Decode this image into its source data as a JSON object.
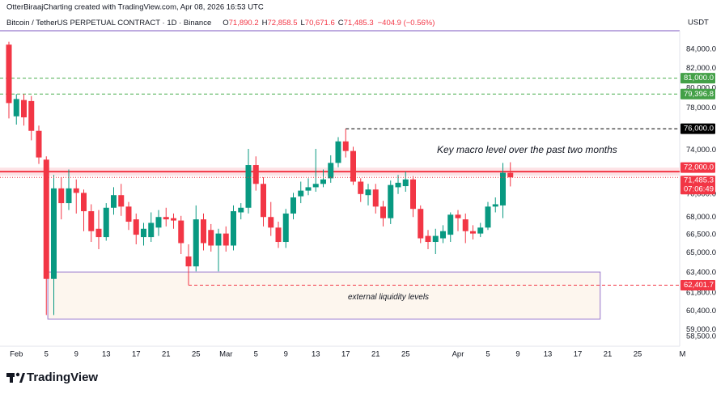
{
  "chart_data": {
    "type": "candlestick",
    "attribution": "OtterBiraajCharting created with TradingView.com, Apr 08, 2026 16:53 UTC",
    "title": "Bitcoin / TetherUS PERPETUAL CONTRACT · 1D · Binance",
    "readout": [
      {
        "key": "O",
        "text": "71,890.2"
      },
      {
        "key": "H",
        "text": "72,858.5"
      },
      {
        "key": "L",
        "text": "70,671.6"
      },
      {
        "key": "C",
        "text": "71,485.3"
      }
    ],
    "change": "−404.9 (−0.56%)",
    "currency": "USDT",
    "log_scale": true,
    "up_color": "#089981",
    "down_color": "#f23645",
    "categories": [
      null,
      "Feb",
      null,
      null,
      null,
      "5",
      null,
      null,
      null,
      "9",
      null,
      null,
      null,
      "13",
      null,
      null,
      null,
      "17",
      null,
      null,
      null,
      "21",
      null,
      null,
      null,
      "25",
      null,
      null,
      null,
      "Mar",
      null,
      null,
      null,
      "5",
      null,
      null,
      null,
      "9",
      null,
      null,
      null,
      "13",
      null,
      null,
      null,
      "17",
      null,
      null,
      null,
      "21",
      null,
      null,
      null,
      "25",
      null,
      null,
      null,
      null,
      null,
      null,
      "Apr",
      null,
      null,
      null,
      "5",
      null,
      null,
      null,
      "9",
      null,
      null,
      null,
      "13",
      null,
      null,
      null,
      "17",
      null,
      null,
      null,
      "21",
      null,
      null,
      null,
      "25",
      null,
      null,
      null,
      null,
      null,
      "M"
    ],
    "open": [
      84500,
      77200,
      78800,
      78700,
      75800,
      73100,
      62900,
      70500,
      69200,
      70500,
      70100,
      68500,
      67000,
      66300,
      68800,
      69900,
      68900,
      67800,
      66300,
      66300,
      67100,
      68000,
      67900,
      67700,
      64700,
      63900,
      67800,
      66900,
      65600,
      66600,
      65600,
      68400,
      68800,
      72600,
      70900,
      68000,
      67100,
      65900,
      68300,
      69800,
      70300,
      70600,
      70900,
      71400,
      72800,
      74800,
      73900,
      71100,
      69900,
      70400,
      68900,
      67900,
      70600,
      70700,
      71300,
      68700,
      66400,
      65900,
      66200,
      66500,
      68200,
      67800,
      66800,
      66600,
      67100,
      68900,
      69000,
      71890.2,
      null,
      null,
      null,
      null,
      null,
      null,
      null,
      null,
      null,
      null,
      null,
      null,
      null,
      null,
      null,
      null,
      null,
      null,
      null,
      null,
      null,
      null,
      null
    ],
    "high": [
      84800,
      79400,
      79400,
      79200,
      76300,
      73400,
      71700,
      71500,
      72200,
      71300,
      70400,
      69100,
      68600,
      69200,
      70600,
      70900,
      69300,
      68300,
      67500,
      68400,
      68600,
      68800,
      68300,
      68100,
      65700,
      69000,
      68300,
      67400,
      67000,
      67200,
      69000,
      69200,
      74100,
      73400,
      71500,
      69300,
      67600,
      68700,
      70100,
      71100,
      71400,
      74100,
      72200,
      73500,
      75200,
      76000,
      74300,
      71400,
      70900,
      70900,
      69400,
      71200,
      71700,
      72000,
      71600,
      69000,
      66900,
      67000,
      67300,
      68400,
      68600,
      68300,
      67300,
      67500,
      69300,
      69700,
      72800,
      72858.5,
      null,
      null,
      null,
      null,
      null,
      null,
      null,
      null,
      null,
      null,
      null,
      null,
      null,
      null,
      null,
      null,
      null,
      null,
      null,
      null,
      null,
      null,
      null
    ],
    "low": [
      77000,
      76400,
      76300,
      74900,
      72700,
      60100,
      60100,
      67800,
      68600,
      68300,
      66800,
      65900,
      65300,
      66000,
      68200,
      68100,
      66900,
      65700,
      65600,
      65900,
      66400,
      67200,
      67000,
      64900,
      62401.7,
      63500,
      65200,
      65100,
      63500,
      65100,
      65200,
      67800,
      68300,
      70300,
      67200,
      66400,
      65400,
      65400,
      67800,
      69200,
      69900,
      70200,
      70600,
      71000,
      72400,
      73300,
      70800,
      69300,
      69000,
      68300,
      67200,
      67400,
      70000,
      70200,
      68000,
      65800,
      65300,
      64900,
      65800,
      65900,
      66800,
      65800,
      66100,
      66300,
      66900,
      68400,
      67900,
      70671.6,
      null,
      null,
      null,
      null,
      null,
      null,
      null,
      null,
      null,
      null,
      null,
      null,
      null,
      null,
      null,
      null,
      null,
      null,
      null,
      null,
      null,
      null,
      null
    ],
    "close": [
      78500,
      78900,
      77100,
      75800,
      73300,
      62900,
      70500,
      69200,
      70500,
      70100,
      68500,
      66800,
      66300,
      68800,
      69900,
      68900,
      67600,
      66500,
      67000,
      67500,
      68000,
      67800,
      67700,
      65800,
      63900,
      67800,
      65800,
      65600,
      66600,
      65600,
      68500,
      68800,
      72600,
      70900,
      68000,
      67100,
      65900,
      68300,
      69700,
      70300,
      70600,
      70900,
      71300,
      72800,
      74800,
      73900,
      71100,
      70000,
      70400,
      68900,
      67900,
      70800,
      71000,
      71300,
      68700,
      66200,
      65900,
      66400,
      66800,
      68200,
      67900,
      66800,
      66600,
      67100,
      68900,
      69100,
      71900,
      71485.3,
      null,
      null,
      null,
      null,
      null,
      null,
      null,
      null,
      null,
      null,
      null,
      null,
      null,
      null,
      null,
      null,
      null,
      null,
      null,
      null,
      null,
      null,
      null
    ],
    "last_price": {
      "value": 71485.3,
      "label": "71,485.3"
    },
    "countdown": "07:06:49",
    "ylim": [
      57780,
      85990
    ],
    "yticks": [
      {
        "value": 58500,
        "label": "58,500.0"
      },
      {
        "value": 59000,
        "label": "59,000.0"
      },
      {
        "value": 60400,
        "label": "60,400.0"
      },
      {
        "value": 61800,
        "label": "61,800.0"
      },
      {
        "value": 63400,
        "label": "63,400.0"
      },
      {
        "value": 65000,
        "label": "65,000.0"
      },
      {
        "value": 66500,
        "label": "66,500.0"
      },
      {
        "value": 68000,
        "label": "68,000.0"
      },
      {
        "value": 70000,
        "label": "70,000.0"
      },
      {
        "value": 74000,
        "label": "74,000.0"
      },
      {
        "value": 78000,
        "label": "78,000.0"
      },
      {
        "value": 80000,
        "label": "80,000.0"
      },
      {
        "value": 82000,
        "label": "82,000.0"
      },
      {
        "value": 84000,
        "label": "84,000.0"
      }
    ],
    "levels": [
      {
        "value": 81000,
        "label": "81,000.0",
        "color": "#4caf50",
        "style": "dashed"
      },
      {
        "value": 79396.8,
        "label": "79,396.8",
        "color": "#4caf50",
        "style": "dashed"
      },
      {
        "value": 76000,
        "label": "76,000.0",
        "color": "#000000",
        "style": "dashed"
      },
      {
        "value": 72000,
        "label": "72,000.0",
        "color": "#f23645",
        "style": "solid"
      },
      {
        "value": 62401.7,
        "label": "62,401.7",
        "color": "#f23645",
        "style": "dashed"
      }
    ],
    "annotation": "Key macro level over the past two months",
    "zone": {
      "top": 63450,
      "bottom": 59800,
      "label": "external liquidity levels",
      "color": "#9575cd"
    },
    "brand": "TradingView"
  }
}
